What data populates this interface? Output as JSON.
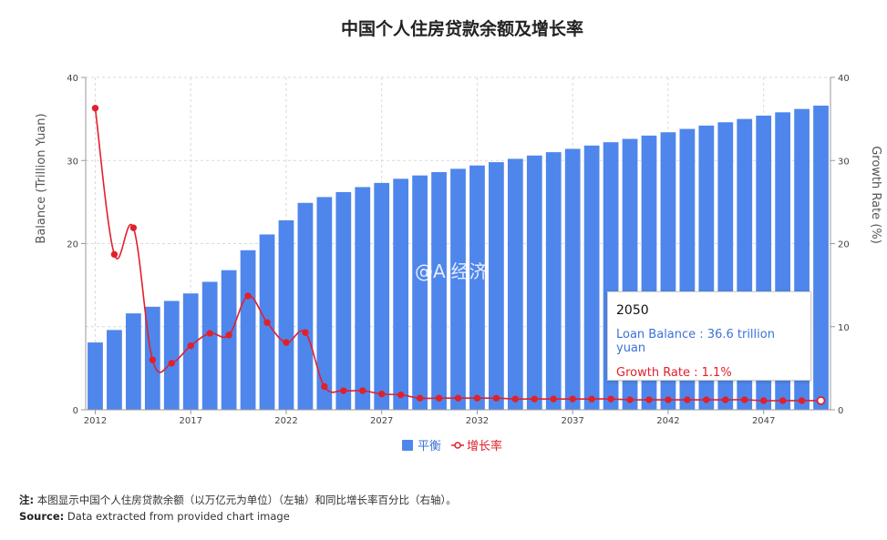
{
  "chart_data": {
    "type": "bar",
    "title": "中国个人住房贷款余额及增长率",
    "ylabel": "Balance (Trillion Yuan)",
    "y2label": "Growth Rate (%)",
    "ylim": [
      0,
      40
    ],
    "y2lim": [
      0,
      40
    ],
    "y_ticks": [
      "0",
      "20",
      "30",
      "40"
    ],
    "y2_ticks": [
      "0",
      "10",
      "20",
      "30",
      "40"
    ],
    "x_tick_labels": [
      "2012",
      "2017",
      "2022",
      "2027",
      "2032",
      "2037",
      "2042",
      "2047"
    ],
    "grid": true,
    "legend_position": "bottom",
    "x": [
      2012,
      2013,
      2014,
      2015,
      2016,
      2017,
      2018,
      2019,
      2020,
      2021,
      2022,
      2023,
      2024,
      2025,
      2026,
      2027,
      2028,
      2029,
      2030,
      2031,
      2032,
      2033,
      2034,
      2035,
      2036,
      2037,
      2038,
      2039,
      2040,
      2041,
      2042,
      2043,
      2044,
      2045,
      2046,
      2047,
      2048,
      2049,
      2050
    ],
    "series": [
      {
        "name": "平衡",
        "type": "bar",
        "color": "#4f86ec",
        "values": [
          8.1,
          9.6,
          11.6,
          12.4,
          13.1,
          14.0,
          15.4,
          16.8,
          19.2,
          21.1,
          22.8,
          24.9,
          25.6,
          26.2,
          26.8,
          27.3,
          27.8,
          28.2,
          28.6,
          29.0,
          29.4,
          29.8,
          30.2,
          30.6,
          31.0,
          31.4,
          31.8,
          32.2,
          32.6,
          33.0,
          33.4,
          33.8,
          34.2,
          34.6,
          35.0,
          35.4,
          35.8,
          36.2,
          36.6
        ]
      },
      {
        "name": "增长率",
        "type": "line",
        "color": "#e0212b",
        "axis": "right",
        "values": [
          36.3,
          18.7,
          21.9,
          6.0,
          5.6,
          7.7,
          9.2,
          9.0,
          13.7,
          10.5,
          8.1,
          9.3,
          2.8,
          2.3,
          2.3,
          1.9,
          1.8,
          1.4,
          1.4,
          1.4,
          1.4,
          1.4,
          1.3,
          1.3,
          1.3,
          1.3,
          1.3,
          1.3,
          1.2,
          1.2,
          1.2,
          1.2,
          1.2,
          1.2,
          1.2,
          1.1,
          1.1,
          1.1,
          1.1
        ]
      }
    ]
  },
  "watermark": "@AI经济",
  "tooltip": {
    "year": "2050",
    "balance_line": "Loan Balance : 36.6 trillion yuan",
    "growth_line": "Growth Rate : 1.1%"
  },
  "footnote": {
    "note_label": "注:",
    "note_text": "本图显示中国个人住房贷款余额（以万亿元为单位）（左轴）和同比增长率百分比（右轴）。",
    "source_label": "Source:",
    "source_text": "Data extracted from provided chart image"
  }
}
